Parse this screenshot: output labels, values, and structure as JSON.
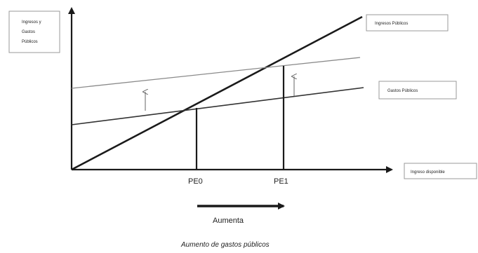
{
  "y_axis_label": [
    "Ingresos y",
    "Gastos",
    "Públicos"
  ],
  "x_axis_label": "Ingreso disponible",
  "lines": {
    "income": "Ingresos Públicos",
    "spending": "Gastos Públicos"
  },
  "equilibrium": {
    "pe0": "PE0",
    "pe1": "PE1"
  },
  "arrow_label": "Aumenta",
  "caption": "Aumento de gastos públicos",
  "colors": {
    "ink": "#1a1a1a",
    "light_line": "#8a8a8a",
    "box_border": "#999999"
  }
}
